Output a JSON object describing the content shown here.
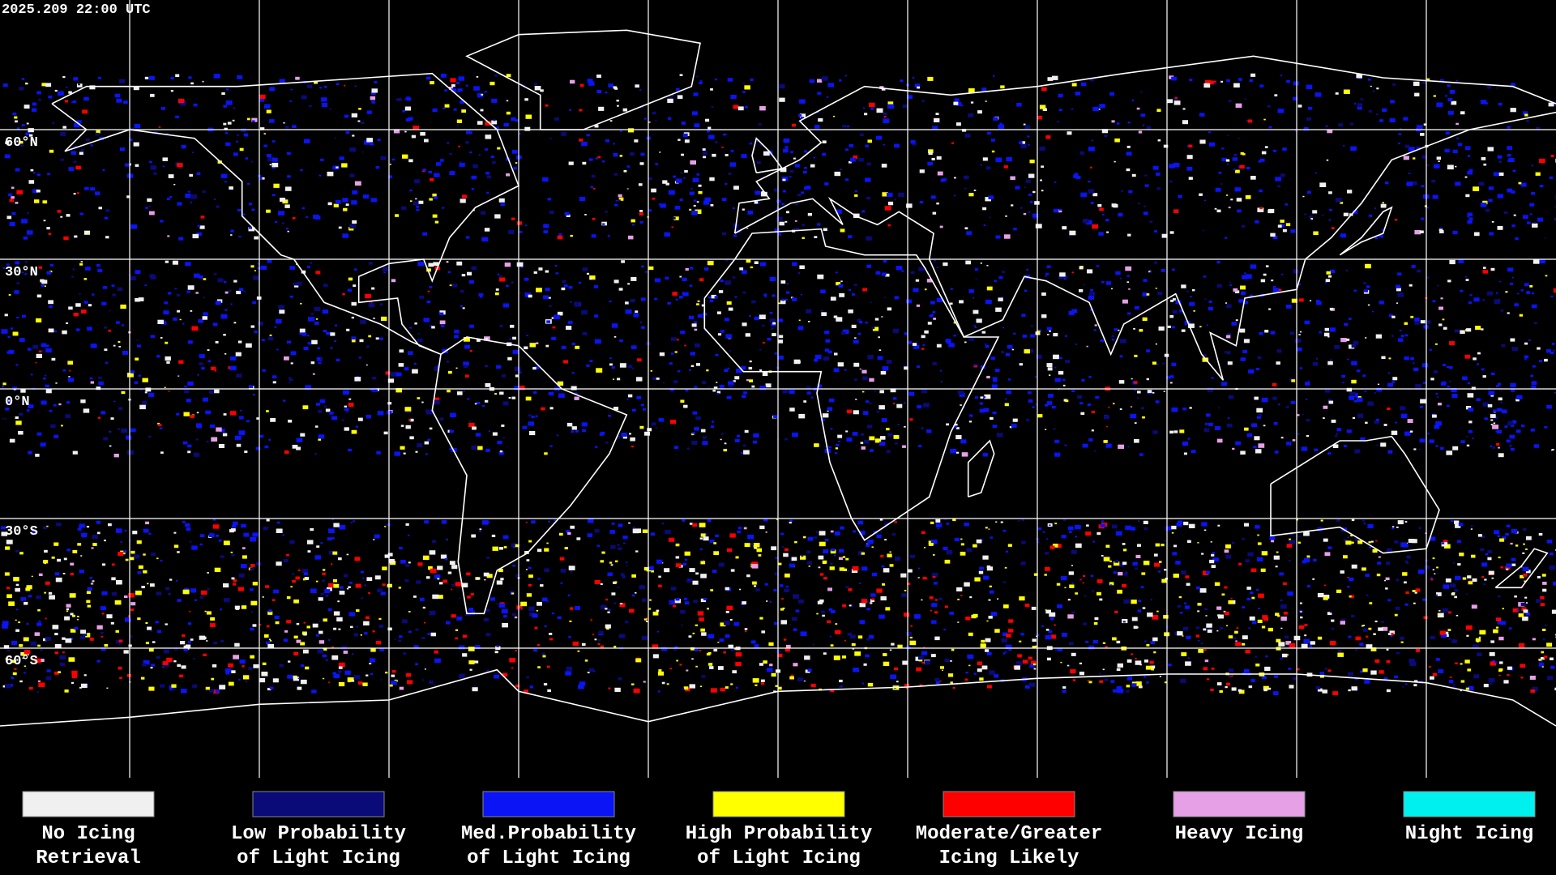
{
  "header": {
    "timestamp": "2025.209 22:00 UTC"
  },
  "map": {
    "lat_labels": [
      "60°N",
      "30°N",
      "0°N",
      "30°S",
      "60°S"
    ]
  },
  "legend": [
    {
      "label": [
        "No Icing",
        "Retrieval"
      ],
      "color": "#f0f0f0"
    },
    {
      "label": [
        "Low Probability",
        "of Light Icing"
      ],
      "color": "#0a0a78"
    },
    {
      "label": [
        "Med.Probability",
        "of Light Icing"
      ],
      "color": "#0a14f5"
    },
    {
      "label": [
        "High Probability",
        "of Light Icing"
      ],
      "color": "#ffff00"
    },
    {
      "label": [
        "Moderate/Greater",
        "Icing Likely"
      ],
      "color": "#ff0000"
    },
    {
      "label": [
        "Heavy Icing"
      ],
      "color": "#e6a0e6"
    },
    {
      "label": [
        "Night Icing"
      ],
      "color": "#00f0f0"
    }
  ]
}
